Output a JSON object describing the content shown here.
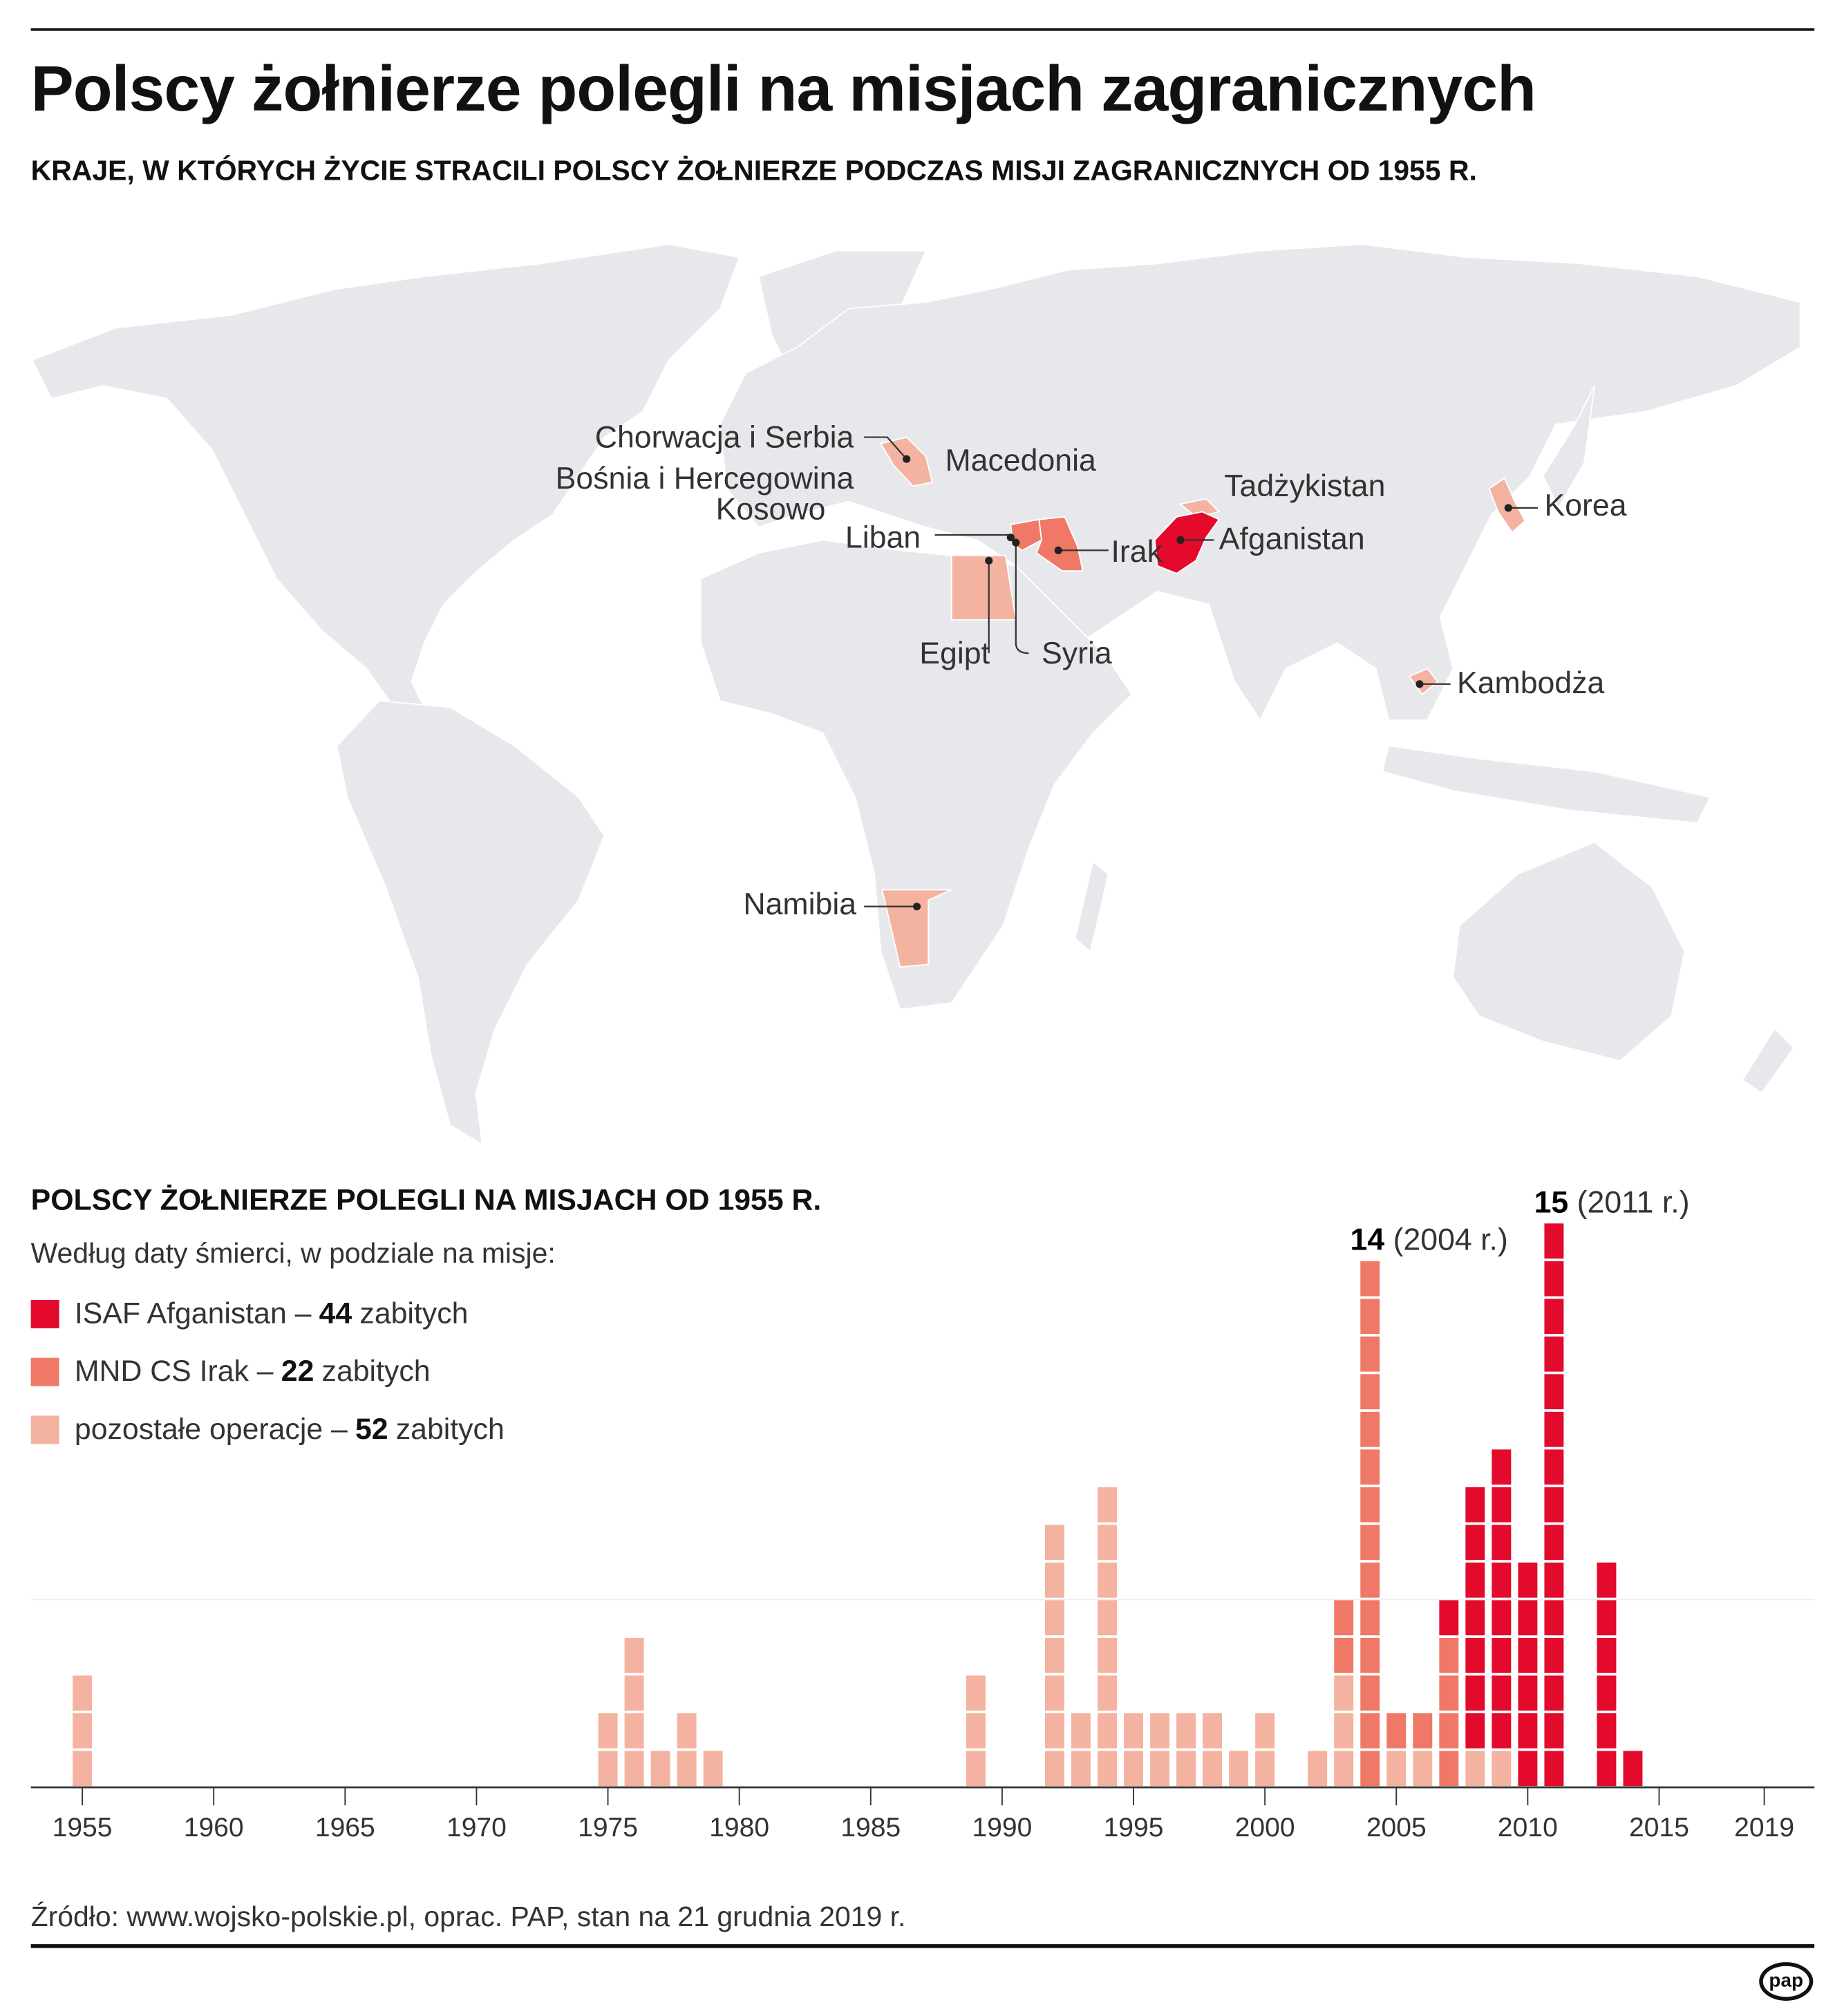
{
  "title": "Polscy żołnierze polegli na misjach zagranicznych",
  "subtitle": "KRAJE, W KTÓRYCH ŻYCIE STRACILI POLSCY ŻOŁNIERZE PODCZAS MISJI ZAGRANICZNYCH OD 1955 R.",
  "colors": {
    "isaf": "#e30a2b",
    "irak": "#ef7866",
    "other": "#f4b2a0",
    "land": "#e6e8eb"
  },
  "map": {
    "labels": {
      "chorwacja": "Chorwacja i Serbia",
      "bosnia": "Bośnia i Hercegowina",
      "kosowo": "Kosowo",
      "macedonia": "Macedonia",
      "liban": "Liban",
      "irak": "Irak",
      "tadzykistan": "Tadżykistan",
      "afganistan": "Afganistan",
      "korea": "Korea",
      "egipt": "Egipt",
      "syria": "Syria",
      "kambodza": "Kambodża",
      "namibia": "Namibia"
    }
  },
  "chart_title": "POLSCY ŻOŁNIERZE POLEGLI NA MISJACH OD 1955 R.",
  "chart_subtitle": "Według daty śmierci, w podziale na misje:",
  "legend": [
    {
      "label": "ISAF Afganistan –",
      "count": "44",
      "unit": "zabitych"
    },
    {
      "label": "MND CS Irak –",
      "count": "22",
      "unit": "zabitych"
    },
    {
      "label": "pozostałe operacje –",
      "count": "52",
      "unit": "zabitych"
    }
  ],
  "chart_data": {
    "type": "bar",
    "stacked": true,
    "xlim": [
      1955,
      2019
    ],
    "x_ticks": [
      "1955",
      "1960",
      "1965",
      "1970",
      "1975",
      "1980",
      "1985",
      "1990",
      "1995",
      "2000",
      "2005",
      "2010",
      "2015",
      "2019"
    ],
    "grid": "single gridline at 5",
    "series": [
      {
        "name": "pozostałe operacje",
        "values": {
          "1955": 3,
          "1975": 2,
          "1976": 4,
          "1977": 1,
          "1978": 2,
          "1979": 1,
          "1989": 3,
          "1992": 7,
          "1993": 2,
          "1994": 8,
          "1995": 2,
          "1996": 2,
          "1997": 2,
          "1998": 2,
          "1999": 1,
          "2000": 2,
          "2002": 1,
          "2003": 3,
          "2005": 1,
          "2006": 1,
          "2008": 1,
          "2009": 1
        }
      },
      {
        "name": "MND CS Irak",
        "values": {
          "2003": 2,
          "2004": 14,
          "2005": 1,
          "2006": 1,
          "2007": 4
        }
      },
      {
        "name": "ISAF Afganistan",
        "values": {
          "2007": 1,
          "2008": 7,
          "2009": 8,
          "2010": 6,
          "2011": 15,
          "2013": 6,
          "2014": 1
        }
      }
    ],
    "annotations": [
      {
        "value": "14",
        "text": "(2004 r.)"
      },
      {
        "value": "15",
        "text": "(2011 r.)"
      }
    ]
  },
  "source": "Źródło: www.wojsko-polskie.pl, oprac. PAP, stan na 21 grudnia 2019 r.",
  "logo": "pap"
}
